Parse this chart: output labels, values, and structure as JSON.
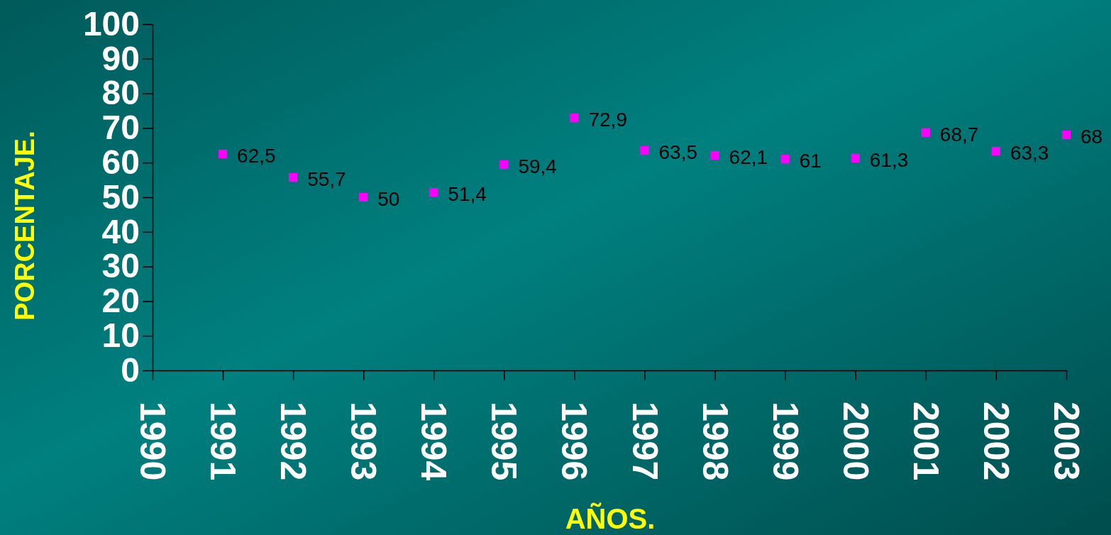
{
  "chart_data": {
    "type": "scatter",
    "xlabel": "AÑOS.",
    "ylabel": "PORCENTAJE.",
    "x": [
      1991,
      1992,
      1993,
      1994,
      1995,
      1996,
      1997,
      1998,
      1999,
      2000,
      2001,
      2002,
      2003
    ],
    "series": [
      {
        "color": "#ff00ff",
        "values": [
          62.5,
          55.7,
          50,
          51.4,
          59.4,
          72.9,
          63.5,
          62.1,
          61,
          61.3,
          68.7,
          63.3,
          68
        ],
        "value_labels": [
          "62,5",
          "55,7",
          "50",
          "51,4",
          "59,4",
          "72,9",
          "63,5",
          "62,1",
          "61",
          "61,3",
          "68,7",
          "63,3",
          "68"
        ]
      }
    ],
    "xlim": [
      1990,
      2003
    ],
    "xticks": [
      1990,
      1991,
      1992,
      1993,
      1994,
      1995,
      1996,
      1997,
      1998,
      1999,
      2000,
      2001,
      2002,
      2003
    ],
    "ylim": [
      0,
      100
    ],
    "yticks": [
      0,
      10,
      20,
      30,
      40,
      50,
      60,
      70,
      80,
      90,
      100
    ],
    "grid": false,
    "marker": "square"
  }
}
